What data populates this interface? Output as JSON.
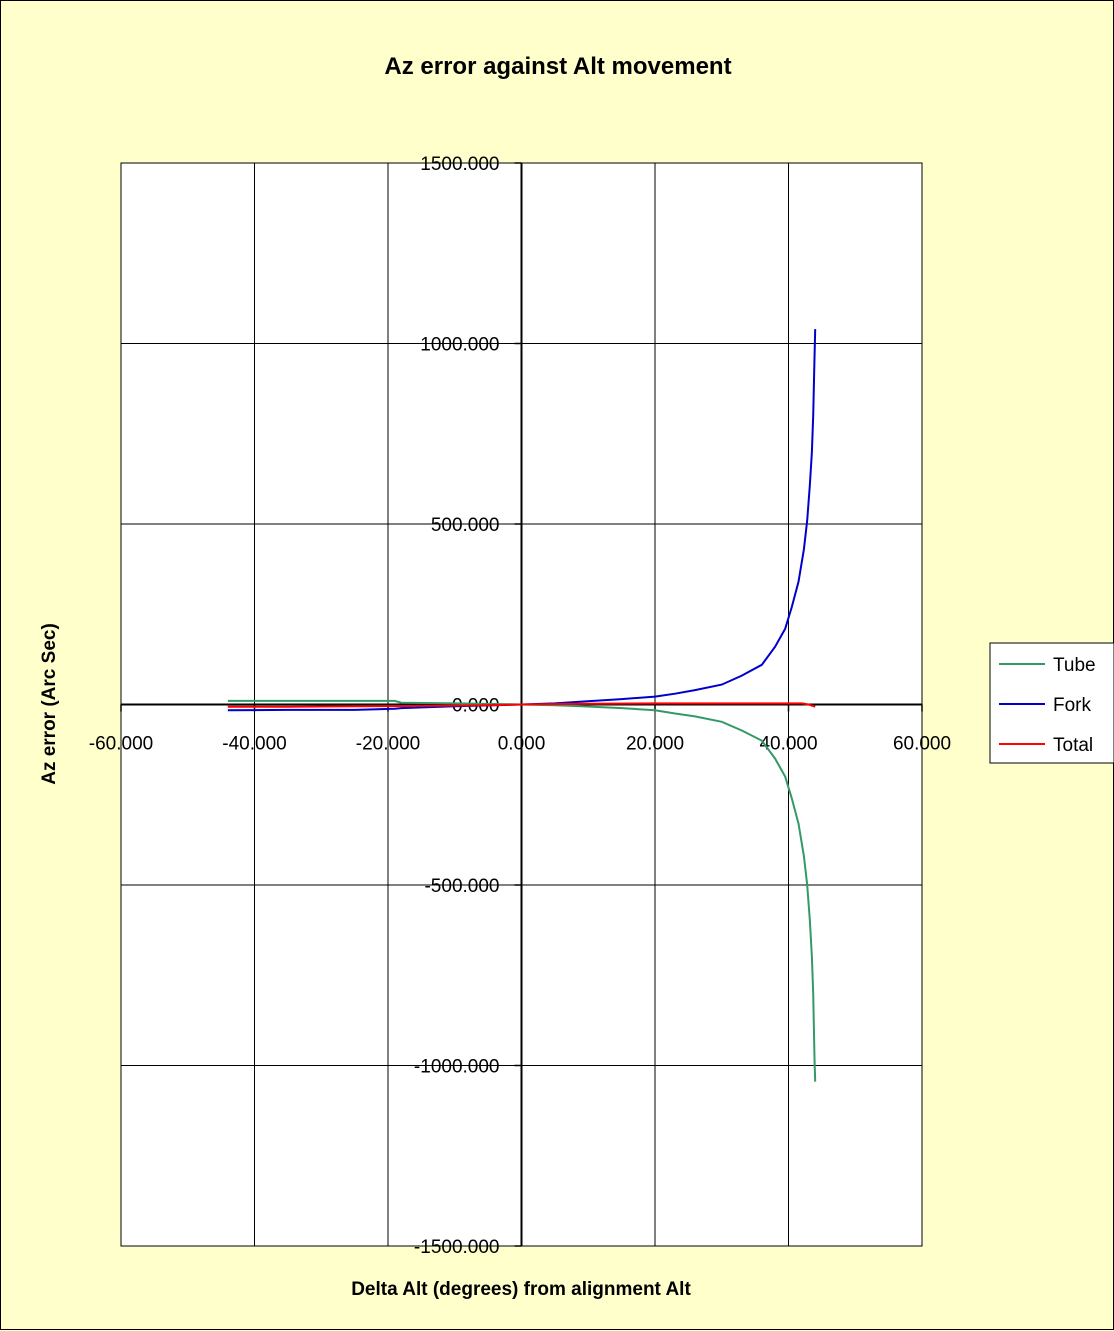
{
  "chart_data": {
    "type": "line",
    "title": "Az error against Alt movement",
    "xlabel": "Delta Alt (degrees) from alignment Alt",
    "ylabel": "Az error (Arc Sec)",
    "xlim": [
      -60,
      60
    ],
    "ylim": [
      -1500,
      1500
    ],
    "x_ticks": [
      -60,
      -40,
      -20,
      0,
      20,
      40,
      60
    ],
    "y_ticks": [
      -1500,
      -1000,
      -500,
      0,
      500,
      1000,
      1500
    ],
    "x_tick_labels": [
      "-60.000",
      "-40.000",
      "-20.000",
      "0.000",
      "20.000",
      "40.000",
      "60.000"
    ],
    "y_tick_labels": [
      "-1500.000",
      "-1000.000",
      "-500.000",
      "0.000",
      "500.000",
      "1000.000",
      "1500.000"
    ],
    "grid": true,
    "legend": "right",
    "series": [
      {
        "name": "Tube",
        "color": "#339966",
        "x": [
          -44,
          -35,
          -25,
          -19,
          -18,
          -10,
          0,
          5,
          9,
          15,
          20,
          23,
          26,
          30,
          33,
          36,
          38,
          39.5,
          40.5,
          41.5,
          42.3,
          42.8,
          43.2,
          43.5,
          43.7,
          43.9,
          44
        ],
        "y": [
          10,
          10,
          10,
          10,
          5,
          3,
          0,
          -2,
          -5,
          -10,
          -16,
          -25,
          -33,
          -48,
          -72,
          -100,
          -150,
          -200,
          -260,
          -330,
          -420,
          -500,
          -600,
          -700,
          -800,
          -980,
          -1045
        ]
      },
      {
        "name": "Fork",
        "color": "#0000cc",
        "x": [
          -44,
          -35,
          -25,
          -19,
          -18,
          -10,
          0,
          5,
          9,
          15,
          20,
          23,
          26,
          30,
          33,
          36,
          38,
          39.5,
          40.5,
          41.5,
          42.3,
          42.8,
          43.2,
          43.5,
          43.7,
          43.9,
          44
        ],
        "y": [
          -16,
          -15,
          -15,
          -12,
          -10,
          -5,
          0,
          3,
          8,
          15,
          22,
          30,
          40,
          55,
          80,
          110,
          160,
          210,
          270,
          340,
          430,
          510,
          610,
          700,
          800,
          960,
          1040
        ]
      },
      {
        "name": "Total",
        "color": "#ff0000",
        "x": [
          -44,
          -35,
          -25,
          -15,
          -5,
          0,
          10,
          20,
          30,
          40,
          42,
          43,
          44
        ],
        "y": [
          -6,
          -6,
          -5,
          -4,
          -2,
          0,
          2,
          3,
          3,
          3,
          3,
          0,
          -6
        ]
      }
    ]
  }
}
